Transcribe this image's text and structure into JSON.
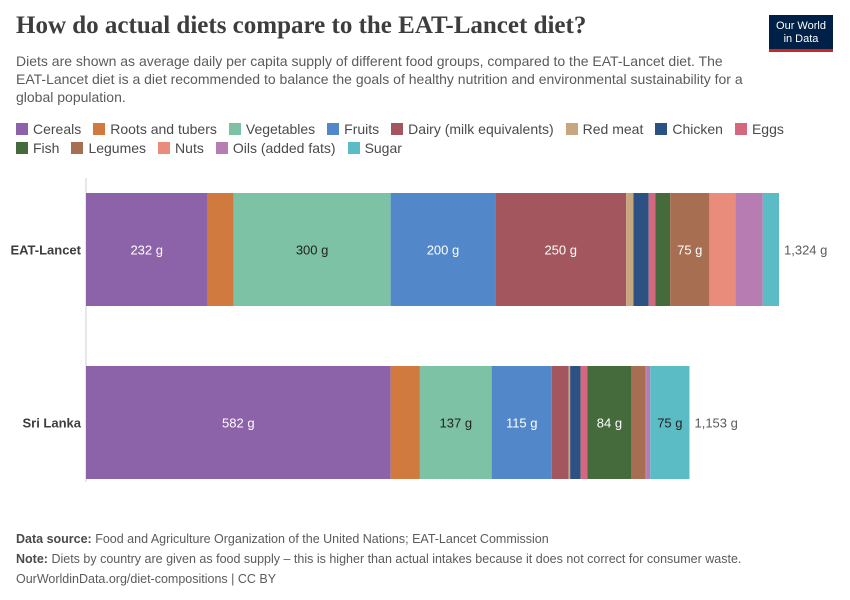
{
  "header": {
    "title": "How do actual diets compare to the EAT-Lancet diet?",
    "subtitle": "Diets are shown as average daily per capita supply of different food groups, compared to the EAT-Lancet diet. The EAT-Lancet diet is a diet recommended to balance the goals of healthy nutrition and environmental sustainability for a global population.",
    "logo_line1": "Our World",
    "logo_line2": "in Data"
  },
  "colors": {
    "logo_bg": "#002147",
    "logo_accent": "#ce261e"
  },
  "chart_data": {
    "type": "bar",
    "orientation": "horizontal",
    "stacked": true,
    "unit": "g",
    "categories": [
      "EAT-Lancet",
      "Sri Lanka"
    ],
    "totals": [
      "1,324 g",
      "1,153 g"
    ],
    "series": [
      {
        "name": "Cereals",
        "color": "#8c62a8",
        "values": [
          232,
          582
        ],
        "labels": [
          "232 g",
          "582 g"
        ],
        "label_color": "#ffffff"
      },
      {
        "name": "Roots and tubers",
        "color": "#d07a40",
        "values": [
          50,
          56
        ],
        "labels": [
          "",
          ""
        ],
        "label_color": "#ffffff"
      },
      {
        "name": "Vegetables",
        "color": "#7dc2a4",
        "values": [
          300,
          137
        ],
        "labels": [
          "300 g",
          "137 g"
        ],
        "label_color": "#222222"
      },
      {
        "name": "Fruits",
        "color": "#5287c9",
        "values": [
          200,
          115
        ],
        "labels": [
          "200 g",
          "115 g"
        ],
        "label_color": "#ffffff"
      },
      {
        "name": "Dairy (milk equivalents)",
        "color": "#a3565d",
        "values": [
          250,
          32
        ],
        "labels": [
          "250 g",
          ""
        ],
        "label_color": "#ffffff"
      },
      {
        "name": "Red meat",
        "color": "#c9a77e",
        "values": [
          14,
          3
        ],
        "labels": [
          "",
          ""
        ],
        "label_color": "#ffffff"
      },
      {
        "name": "Chicken",
        "color": "#2c5283",
        "values": [
          29,
          20
        ],
        "labels": [
          "",
          ""
        ],
        "label_color": "#ffffff"
      },
      {
        "name": "Eggs",
        "color": "#d4687f",
        "values": [
          13,
          13
        ],
        "labels": [
          "",
          ""
        ],
        "label_color": "#ffffff"
      },
      {
        "name": "Fish",
        "color": "#456a3c",
        "values": [
          28,
          84
        ],
        "labels": [
          "",
          "84 g"
        ],
        "label_color": "#ffffff"
      },
      {
        "name": "Legumes",
        "color": "#a86e52",
        "values": [
          75,
          27
        ],
        "labels": [
          "75 g",
          ""
        ],
        "label_color": "#ffffff"
      },
      {
        "name": "Nuts",
        "color": "#ea8c7c",
        "values": [
          50,
          1
        ],
        "labels": [
          "",
          ""
        ],
        "label_color": "#ffffff"
      },
      {
        "name": "Oils (added fats)",
        "color": "#b77db3",
        "values": [
          52,
          8
        ],
        "labels": [
          "",
          ""
        ],
        "label_color": "#ffffff"
      },
      {
        "name": "Sugar",
        "color": "#5bbcc6",
        "values": [
          31,
          75
        ],
        "labels": [
          "",
          "75 g"
        ],
        "label_color": "#222222"
      }
    ],
    "xlim": [
      0,
      1324
    ],
    "grid": false,
    "legend_placement": "top"
  },
  "footer": {
    "source_label": "Data source:",
    "source_text": "Food and Agriculture Organization of the United Nations; EAT-Lancet Commission",
    "note_label": "Note:",
    "note_text": "Diets by country are given as food supply – this is higher than actual intakes because it does not correct for consumer waste.",
    "url_text": "OurWorldinData.org/diet-compositions | CC BY"
  }
}
